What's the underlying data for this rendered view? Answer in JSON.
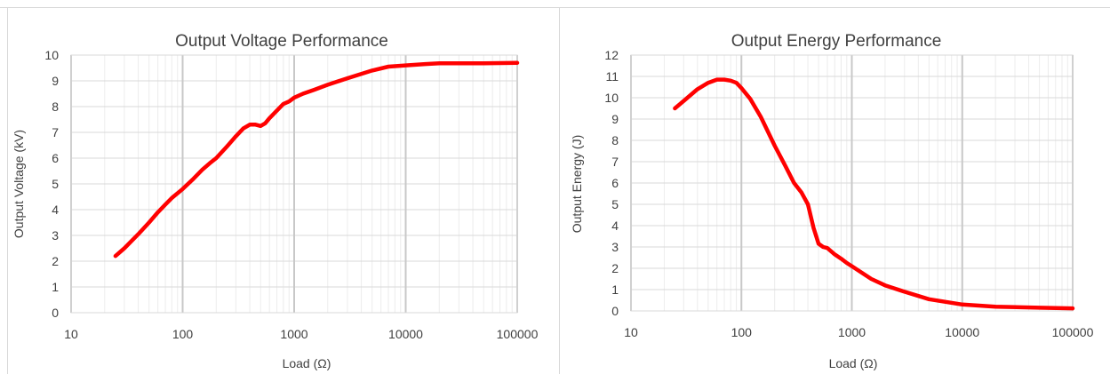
{
  "chart_data": [
    {
      "type": "line",
      "title": "Output Voltage Performance",
      "xlabel": "Load (Ω)",
      "ylabel": "Output Voltage (kV)",
      "xscale": "log",
      "xlim": [
        10,
        100000
      ],
      "ylim": [
        0,
        10
      ],
      "xticks": [
        "10",
        "100",
        "1000",
        "10000",
        "100000"
      ],
      "yticks": [
        "0",
        "1",
        "2",
        "3",
        "4",
        "5",
        "6",
        "7",
        "8",
        "9",
        "10"
      ],
      "grid": true,
      "legend": "none",
      "series_color": "#ff0000",
      "series": [
        {
          "x": [
            25,
            30,
            40,
            50,
            60,
            70,
            80,
            100,
            125,
            150,
            175,
            200,
            250,
            300,
            350,
            400,
            450,
            500,
            550,
            600,
            700,
            800,
            900,
            1000,
            1200,
            1500,
            2000,
            3000,
            5000,
            7000,
            10000,
            15000,
            20000,
            30000,
            50000,
            100000
          ],
          "y": [
            2.2,
            2.5,
            3.05,
            3.5,
            3.9,
            4.2,
            4.45,
            4.8,
            5.2,
            5.55,
            5.8,
            6.0,
            6.45,
            6.85,
            7.15,
            7.3,
            7.3,
            7.25,
            7.35,
            7.55,
            7.85,
            8.1,
            8.2,
            8.35,
            8.5,
            8.65,
            8.85,
            9.1,
            9.4,
            9.55,
            9.6,
            9.65,
            9.68,
            9.68,
            9.68,
            9.7
          ]
        }
      ]
    },
    {
      "type": "line",
      "title": "Output Energy Performance",
      "xlabel": "Load (Ω)",
      "ylabel": "Output Energy (J)",
      "xscale": "log",
      "xlim": [
        10,
        100000
      ],
      "ylim": [
        0,
        12
      ],
      "xticks": [
        "10",
        "100",
        "1000",
        "10000",
        "100000"
      ],
      "yticks": [
        "0",
        "1",
        "2",
        "3",
        "4",
        "5",
        "6",
        "7",
        "8",
        "9",
        "10",
        "11",
        "12"
      ],
      "grid": true,
      "legend": "none",
      "series_color": "#ff0000",
      "series": [
        {
          "x": [
            25,
            30,
            40,
            50,
            60,
            70,
            80,
            90,
            100,
            120,
            150,
            200,
            250,
            300,
            350,
            400,
            450,
            500,
            550,
            600,
            700,
            800,
            900,
            1000,
            1500,
            2000,
            3000,
            5000,
            10000,
            20000,
            50000,
            100000
          ],
          "y": [
            9.5,
            9.85,
            10.4,
            10.7,
            10.85,
            10.85,
            10.8,
            10.7,
            10.45,
            9.95,
            9.1,
            7.75,
            6.8,
            6.0,
            5.55,
            5.0,
            3.9,
            3.15,
            3.0,
            2.95,
            2.65,
            2.45,
            2.25,
            2.1,
            1.5,
            1.2,
            0.9,
            0.55,
            0.3,
            0.2,
            0.15,
            0.12
          ]
        }
      ]
    }
  ]
}
